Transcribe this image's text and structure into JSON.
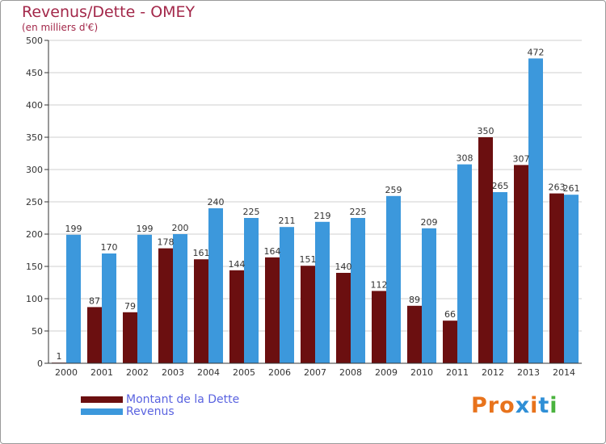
{
  "title": "Revenus/Dette - OMEY",
  "subtitle": "(en milliers d'€)",
  "colors": {
    "dette": "#6b0f10",
    "revenus": "#3c98dc",
    "axis": "#333333",
    "grid": "#cfcfcf",
    "title": "#a3284a",
    "legend_text": "#5a63e0"
  },
  "chart_data": {
    "type": "bar",
    "title": "Revenus/Dette - OMEY",
    "ylabel": "(en milliers d'€)",
    "xlabel": "",
    "ylim": [
      0,
      500
    ],
    "yticks": [
      0,
      50,
      100,
      150,
      200,
      250,
      300,
      350,
      400,
      450,
      500
    ],
    "categories": [
      "2000",
      "2001",
      "2002",
      "2003",
      "2004",
      "2005",
      "2006",
      "2007",
      "2008",
      "2009",
      "2010",
      "2011",
      "2012",
      "2013",
      "2014"
    ],
    "series": [
      {
        "name": "Montant de la Dette",
        "values": [
          1,
          87,
          79,
          178,
          161,
          144,
          164,
          151,
          140,
          112,
          89,
          66,
          350,
          307,
          263
        ]
      },
      {
        "name": "Revenus",
        "values": [
          199,
          170,
          199,
          200,
          240,
          225,
          211,
          219,
          225,
          259,
          209,
          308,
          265,
          472,
          261
        ]
      }
    ],
    "legend": "bottom-left",
    "grid": true
  },
  "legend": {
    "dette_label": "Montant de la Dette",
    "revenus_label": "Revenus"
  },
  "logo": {
    "text": "Proxiti"
  }
}
